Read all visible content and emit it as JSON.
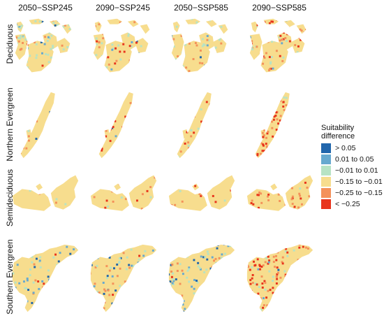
{
  "columns": [
    "2050−SSP245",
    "2090−SSP245",
    "2050−SSP585",
    "2090−SSP585"
  ],
  "rows": [
    "Deciduous",
    "Northern Evergreen",
    "Semideciduous",
    "Southern Evergreen"
  ],
  "legend": {
    "title_line1": "Suitability",
    "title_line2": "difference",
    "items": [
      {
        "label": "> 0.05",
        "color": "#2166ac"
      },
      {
        "label": "0.01 to 0.05",
        "color": "#67a9cf"
      },
      {
        "label": "−0.01 to 0.01",
        "color": "#b7e3c4"
      },
      {
        "label": "−0.15 to −0.01",
        "color": "#f7dd8e"
      },
      {
        "label": "−0.25 to −0.15",
        "color": "#f4915a"
      },
      {
        "label": "< −0.25",
        "color": "#e8341c"
      }
    ]
  },
  "colors": {
    "high": "#2166ac",
    "mid_high": "#67a9cf",
    "neutral": "#b7e3c4",
    "mild_loss": "#f7dd8e",
    "moderate_loss": "#f4915a",
    "strong_loss": "#e8341c"
  }
}
